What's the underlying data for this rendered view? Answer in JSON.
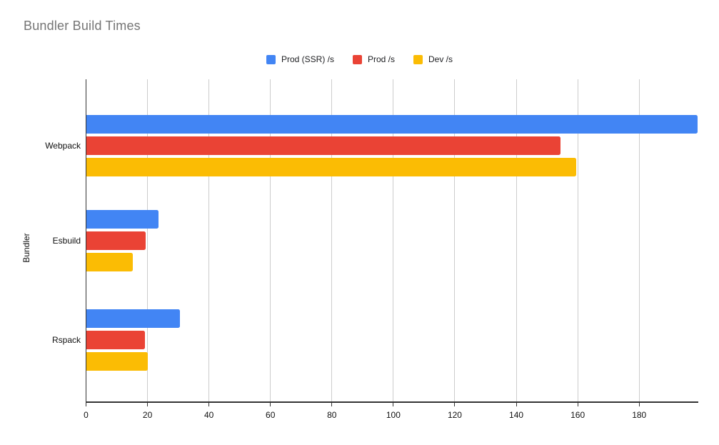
{
  "chart_data": {
    "type": "bar",
    "orientation": "horizontal",
    "title": "Bundler Build Times",
    "categories": [
      "Webpack",
      "Esbuild",
      "Rspack"
    ],
    "series": [
      {
        "name": "Prod (SSR) /s",
        "color": "#4285F4",
        "values": [
          199,
          23.5,
          30.5
        ]
      },
      {
        "name": "Prod /s",
        "color": "#EA4335",
        "values": [
          154.5,
          19.4,
          19.2
        ]
      },
      {
        "name": "Dev /s",
        "color": "#FBBC04",
        "values": [
          159.5,
          15.2,
          20
        ]
      }
    ],
    "xlabel": "",
    "ylabel": "Bundler",
    "xlim": [
      0,
      199
    ],
    "xticks": [
      0,
      20,
      40,
      60,
      80,
      100,
      120,
      140,
      160,
      180
    ],
    "grid": true,
    "legend_position": "top-center"
  },
  "colors": {
    "title_text": "#757575",
    "axis_line": "#333333",
    "gridline": "#cccccc",
    "tick_label": "#111111",
    "legend_text": "#202124",
    "background": "#ffffff"
  }
}
